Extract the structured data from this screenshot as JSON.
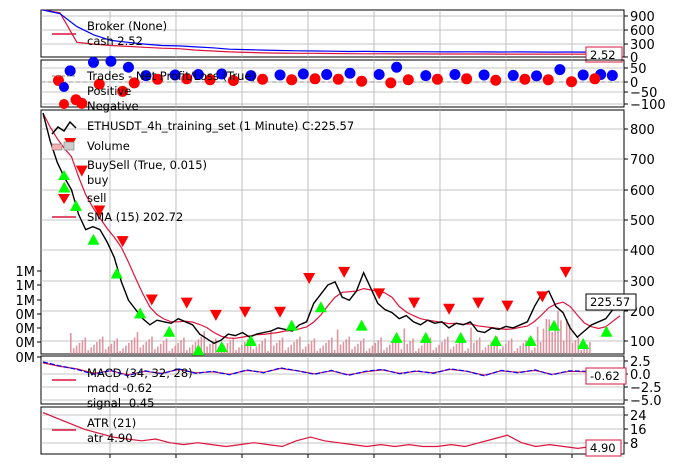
{
  "chart_data": [
    {
      "panel": "broker",
      "type": "line",
      "legend": [
        {
          "label": "Broker (None)"
        },
        {
          "label": "cash 2.52"
        }
      ],
      "yticks": [
        "900",
        "600",
        "300",
        "0"
      ],
      "ylim": [
        -60,
        960
      ],
      "last_value_label": "2.52",
      "series": [
        {
          "name": "cash",
          "color": "#dc143c",
          "values": [
            960,
            900,
            260,
            220,
            190,
            170,
            150,
            130,
            120,
            90,
            70,
            50,
            40,
            30,
            25,
            20,
            20,
            15,
            12,
            10,
            10,
            8,
            8,
            6,
            6,
            5,
            5,
            4,
            4,
            3,
            3,
            3,
            3,
            2.5,
            2.5
          ]
        },
        {
          "name": "value",
          "color": "#0000ff",
          "values": [
            960,
            880,
            600,
            420,
            300,
            260,
            220,
            190,
            180,
            160,
            140,
            110,
            100,
            90,
            80,
            75,
            70,
            65,
            60,
            62,
            58,
            55,
            55,
            52,
            50,
            52,
            50,
            48,
            50,
            48,
            46,
            48,
            46,
            120,
            120
          ]
        }
      ]
    },
    {
      "panel": "trades",
      "type": "scatter",
      "legend": [
        {
          "label": "Trades - Net Profit/Loss (True)"
        },
        {
          "label": "Positive"
        },
        {
          "label": "Negative"
        }
      ],
      "yticks": [
        "50",
        "0",
        "−50",
        "−100"
      ],
      "ylim": [
        -125,
        70
      ],
      "positive_color": "#0000ff",
      "negative_color": "#ff0000",
      "positive": [
        [
          0.05,
          25
        ],
        [
          0.09,
          60
        ],
        [
          0.12,
          65
        ],
        [
          0.15,
          40
        ],
        [
          0.18,
          5
        ],
        [
          0.23,
          8
        ],
        [
          0.27,
          10
        ],
        [
          0.31,
          12
        ],
        [
          0.36,
          5
        ],
        [
          0.41,
          8
        ],
        [
          0.45,
          12
        ],
        [
          0.49,
          10
        ],
        [
          0.53,
          15
        ],
        [
          0.58,
          10
        ],
        [
          0.61,
          40
        ],
        [
          0.66,
          5
        ],
        [
          0.71,
          10
        ],
        [
          0.76,
          8
        ],
        [
          0.81,
          6
        ],
        [
          0.85,
          4
        ],
        [
          0.89,
          30
        ],
        [
          0.93,
          8
        ],
        [
          0.96,
          10
        ],
        [
          0.98,
          6
        ]
      ],
      "negative": [
        [
          0.03,
          -15
        ],
        [
          0.06,
          -95
        ],
        [
          0.07,
          -110
        ],
        [
          0.1,
          -30
        ],
        [
          0.14,
          -60
        ],
        [
          0.16,
          -25
        ],
        [
          0.2,
          -10
        ],
        [
          0.25,
          -8
        ],
        [
          0.29,
          -12
        ],
        [
          0.33,
          -15
        ],
        [
          0.38,
          -10
        ],
        [
          0.43,
          -12
        ],
        [
          0.47,
          -8
        ],
        [
          0.51,
          -10
        ],
        [
          0.55,
          -18
        ],
        [
          0.6,
          -25
        ],
        [
          0.63,
          -12
        ],
        [
          0.68,
          -10
        ],
        [
          0.73,
          -8
        ],
        [
          0.78,
          -14
        ],
        [
          0.83,
          -10
        ],
        [
          0.87,
          -12
        ],
        [
          0.91,
          -20
        ],
        [
          0.95,
          -8
        ]
      ]
    },
    {
      "panel": "price",
      "type": "line",
      "legend": [
        {
          "label": "ETHUSDT_4h_training_set (1 Minute) C:225.57"
        },
        {
          "label": "Volume"
        },
        {
          "label": "BuySell (True, 0.015)"
        },
        {
          "label": "buy"
        },
        {
          "label": "sell"
        },
        {
          "label": "SMA (15) 202.72"
        }
      ],
      "yticks": [
        "800",
        "700",
        "600",
        "500",
        "400",
        "300",
        "200",
        "100"
      ],
      "ylim": [
        65,
        860
      ],
      "volume_ticks": [
        "1M",
        "1M",
        "1M",
        "0M",
        "0M",
        "0M",
        "0M"
      ],
      "last_value_label": "225.57",
      "close": [
        850,
        760,
        690,
        640,
        600,
        520,
        470,
        480,
        470,
        430,
        380,
        300,
        240,
        210,
        180,
        160,
        175,
        170,
        165,
        180,
        170,
        160,
        130,
        115,
        100,
        110,
        130,
        125,
        135,
        120,
        130,
        135,
        140,
        150,
        145,
        140,
        160,
        170,
        230,
        260,
        290,
        300,
        250,
        240,
        270,
        330,
        280,
        230,
        210,
        200,
        180,
        190,
        170,
        160,
        175,
        165,
        170,
        150,
        165,
        160,
        170,
        140,
        135,
        150,
        145,
        155,
        150,
        160,
        170,
        220,
        260,
        270,
        220,
        200,
        150,
        120,
        140,
        160,
        170,
        180,
        210,
        225
      ],
      "buys": [
        [
          0.04,
          640
        ],
        [
          0.06,
          580
        ],
        [
          0.09,
          470
        ],
        [
          0.13,
          360
        ],
        [
          0.17,
          230
        ],
        [
          0.22,
          170
        ],
        [
          0.27,
          110
        ],
        [
          0.31,
          120
        ],
        [
          0.36,
          140
        ],
        [
          0.43,
          190
        ],
        [
          0.48,
          250
        ],
        [
          0.55,
          190
        ],
        [
          0.61,
          150
        ],
        [
          0.66,
          150
        ],
        [
          0.72,
          150
        ],
        [
          0.78,
          140
        ],
        [
          0.84,
          140
        ],
        [
          0.88,
          190
        ],
        [
          0.93,
          130
        ],
        [
          0.97,
          170
        ]
      ],
      "sells": [
        [
          0.05,
          720
        ],
        [
          0.07,
          630
        ],
        [
          0.1,
          500
        ],
        [
          0.14,
          400
        ],
        [
          0.19,
          210
        ],
        [
          0.25,
          200
        ],
        [
          0.3,
          160
        ],
        [
          0.35,
          170
        ],
        [
          0.41,
          170
        ],
        [
          0.46,
          280
        ],
        [
          0.52,
          300
        ],
        [
          0.58,
          230
        ],
        [
          0.64,
          200
        ],
        [
          0.7,
          180
        ],
        [
          0.75,
          200
        ],
        [
          0.8,
          190
        ],
        [
          0.86,
          220
        ],
        [
          0.9,
          300
        ],
        [
          0.95,
          210
        ],
        [
          0.99,
          200
        ]
      ]
    },
    {
      "panel": "macd",
      "type": "line",
      "legend": [
        {
          "label": "MACD (34, 32, 28)"
        },
        {
          "label": "macd -0.62"
        },
        {
          "label": "signal -0.45"
        }
      ],
      "yticks": [
        "2.5",
        "0.0",
        "−2.5",
        "−5.0"
      ],
      "ylim": [
        -6.5,
        3.2
      ],
      "last_value_label": "-0.62",
      "series": [
        {
          "name": "macd",
          "color": "#0000ff",
          "values": [
            2.0,
            1.2,
            0.5,
            -0.5,
            0.3,
            -0.8,
            0.2,
            -0.4,
            0.6,
            -0.3,
            0.1,
            -0.6,
            0.4,
            -0.2,
            0.8,
            0.2,
            -0.5,
            0.3,
            -0.7,
            0.1,
            0.5,
            -0.4,
            0.2,
            -0.3,
            0.6,
            0.1,
            -0.8,
            0.3,
            -0.2,
            0.4,
            -0.6,
            0.2,
            0.1,
            -0.4,
            -0.62
          ]
        },
        {
          "name": "signal",
          "color": "#dc143c",
          "values": [
            1.8,
            1.1,
            0.6,
            -0.3,
            0.2,
            -0.6,
            0.1,
            -0.3,
            0.5,
            -0.2,
            0.0,
            -0.5,
            0.3,
            -0.1,
            0.7,
            0.2,
            -0.4,
            0.2,
            -0.6,
            0.0,
            0.4,
            -0.3,
            0.1,
            -0.2,
            0.5,
            0.1,
            -0.7,
            0.2,
            -0.1,
            0.3,
            -0.5,
            0.1,
            0.0,
            -0.3,
            -0.45
          ]
        }
      ]
    },
    {
      "panel": "atr",
      "type": "line",
      "legend": [
        {
          "label": "ATR (21)"
        },
        {
          "label": "atr 4.90"
        }
      ],
      "yticks": [
        "24",
        "16",
        "8"
      ],
      "ylim": [
        2,
        27
      ],
      "last_value_label": "4.90",
      "series": [
        {
          "name": "atr",
          "color": "#dc143c",
          "values": [
            24,
            21,
            18,
            15,
            13,
            11,
            10,
            9,
            10,
            8,
            7,
            8,
            7,
            6,
            7,
            8,
            7,
            6,
            9,
            11,
            9,
            8,
            7,
            6,
            7,
            6,
            7,
            6,
            6,
            7,
            6,
            8,
            10,
            12,
            8,
            6,
            7,
            6,
            5,
            6,
            5,
            4.9
          ]
        }
      ]
    }
  ]
}
